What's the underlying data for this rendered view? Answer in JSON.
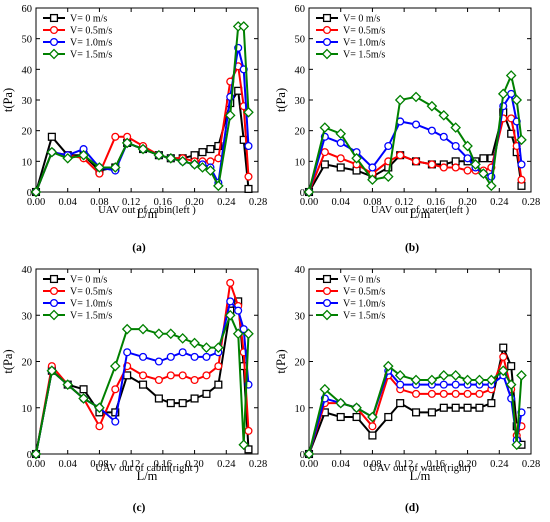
{
  "chart_data": [
    {
      "type": "line",
      "panel_label": "(a)",
      "caption": "UAV out of cabin(left )",
      "xlabel": "L/m",
      "ylabel": "t(Pa)",
      "xlim": [
        0,
        0.28
      ],
      "ylim": [
        0,
        60
      ],
      "xticks": [
        "0.00",
        "0.04",
        "0.08",
        "0.12",
        "0.16",
        "0.20",
        "0.24",
        "0.28"
      ],
      "yticks": [
        "0",
        "10",
        "20",
        "30",
        "40",
        "50",
        "60"
      ],
      "legend_position": "top-left",
      "series": [
        {
          "name": "V= 0 m/s",
          "color": "#000000",
          "marker": "square",
          "x": [
            0.0,
            0.02,
            0.04,
            0.06,
            0.08,
            0.1,
            0.115,
            0.135,
            0.155,
            0.17,
            0.185,
            0.2,
            0.21,
            0.22,
            0.23,
            0.245,
            0.255,
            0.262,
            0.268
          ],
          "y": [
            0,
            18,
            12,
            12,
            7,
            8,
            16,
            14,
            12,
            11,
            11,
            12,
            13,
            14,
            15,
            29,
            33,
            17,
            1
          ]
        },
        {
          "name": "V= 0.5m/s",
          "color": "#ff0000",
          "marker": "circle",
          "x": [
            0.0,
            0.02,
            0.04,
            0.06,
            0.08,
            0.1,
            0.115,
            0.135,
            0.155,
            0.17,
            0.185,
            0.2,
            0.21,
            0.22,
            0.23,
            0.245,
            0.255,
            0.262,
            0.268
          ],
          "y": [
            0,
            13,
            12,
            11,
            6,
            18,
            18,
            15,
            12,
            11,
            11,
            10,
            10,
            10,
            11,
            36,
            41,
            28,
            5
          ]
        },
        {
          "name": "V= 1.0m/s",
          "color": "#0000ff",
          "marker": "circle",
          "x": [
            0.0,
            0.02,
            0.04,
            0.06,
            0.08,
            0.1,
            0.115,
            0.135,
            0.155,
            0.17,
            0.185,
            0.2,
            0.21,
            0.22,
            0.23,
            0.245,
            0.255,
            0.262,
            0.268
          ],
          "y": [
            0,
            13,
            12,
            14,
            8,
            7,
            16,
            14,
            12,
            11,
            10,
            9,
            9,
            8,
            3,
            31,
            47,
            40,
            15
          ]
        },
        {
          "name": "V= 1.5m/s",
          "color": "#008000",
          "marker": "diamond",
          "x": [
            0.0,
            0.02,
            0.04,
            0.06,
            0.08,
            0.1,
            0.115,
            0.135,
            0.155,
            0.17,
            0.185,
            0.2,
            0.21,
            0.22,
            0.23,
            0.245,
            0.255,
            0.262,
            0.268
          ],
          "y": [
            0,
            13,
            11,
            12,
            8,
            8,
            16,
            14,
            12,
            11,
            10,
            9,
            8,
            7,
            2,
            25,
            54,
            54,
            26
          ]
        }
      ]
    },
    {
      "type": "line",
      "panel_label": "(b)",
      "caption": "UAV out of water(left )",
      "xlabel": "L/m",
      "ylabel": "t(Pa)",
      "xlim": [
        0,
        0.28
      ],
      "ylim": [
        0,
        60
      ],
      "xticks": [
        "0.00",
        "0.04",
        "0.08",
        "0.12",
        "0.16",
        "0.20",
        "0.24",
        "0.28"
      ],
      "yticks": [
        "0",
        "10",
        "20",
        "30",
        "40",
        "50",
        "60"
      ],
      "legend_position": "top-left",
      "series": [
        {
          "name": "V= 0 m/s",
          "color": "#000000",
          "marker": "square",
          "x": [
            0.0,
            0.02,
            0.04,
            0.06,
            0.08,
            0.1,
            0.115,
            0.135,
            0.155,
            0.17,
            0.185,
            0.2,
            0.21,
            0.22,
            0.23,
            0.245,
            0.255,
            0.262,
            0.268
          ],
          "y": [
            0,
            9,
            8,
            7,
            5,
            8,
            12,
            10,
            9,
            9,
            10,
            10,
            10,
            11,
            11,
            26,
            19,
            13,
            2
          ]
        },
        {
          "name": "V= 0.5m/s",
          "color": "#ff0000",
          "marker": "circle",
          "x": [
            0.0,
            0.02,
            0.04,
            0.06,
            0.08,
            0.1,
            0.115,
            0.135,
            0.155,
            0.17,
            0.185,
            0.2,
            0.21,
            0.22,
            0.23,
            0.245,
            0.255,
            0.262,
            0.268
          ],
          "y": [
            0,
            13,
            11,
            9,
            6,
            10,
            12,
            10,
            9,
            8,
            8,
            7,
            7,
            7,
            8,
            24,
            24,
            15,
            4
          ]
        },
        {
          "name": "V= 1.0m/s",
          "color": "#0000ff",
          "marker": "circle",
          "x": [
            0.0,
            0.02,
            0.04,
            0.06,
            0.08,
            0.1,
            0.115,
            0.135,
            0.155,
            0.17,
            0.185,
            0.2,
            0.21,
            0.22,
            0.23,
            0.245,
            0.255,
            0.262,
            0.268
          ],
          "y": [
            0,
            18,
            16,
            13,
            8,
            15,
            23,
            22,
            20,
            18,
            15,
            11,
            8,
            6,
            5,
            28,
            32,
            23,
            9
          ]
        },
        {
          "name": "V= 1.5m/s",
          "color": "#008000",
          "marker": "diamond",
          "x": [
            0.0,
            0.02,
            0.04,
            0.06,
            0.08,
            0.1,
            0.115,
            0.135,
            0.155,
            0.17,
            0.185,
            0.2,
            0.21,
            0.22,
            0.23,
            0.245,
            0.255,
            0.262,
            0.268
          ],
          "y": [
            0,
            21,
            19,
            11,
            4,
            5,
            30,
            31,
            28,
            25,
            21,
            15,
            9,
            6,
            2,
            32,
            38,
            30,
            17
          ]
        }
      ]
    },
    {
      "type": "line",
      "panel_label": "(c)",
      "caption": "UAV out of cabin(right )",
      "xlabel": "L/m",
      "ylabel": "t(Pa)",
      "xlim": [
        0,
        0.28
      ],
      "ylim": [
        0,
        40
      ],
      "xticks": [
        "0.00",
        "0.04",
        "0.08",
        "0.12",
        "0.16",
        "0.20",
        "0.24",
        "0.28"
      ],
      "yticks": [
        "0",
        "10",
        "20",
        "30",
        "40"
      ],
      "legend_position": "top-left",
      "series": [
        {
          "name": "V= 0 m/s",
          "color": "#000000",
          "marker": "square",
          "x": [
            0.0,
            0.02,
            0.04,
            0.06,
            0.08,
            0.1,
            0.115,
            0.135,
            0.155,
            0.17,
            0.185,
            0.2,
            0.215,
            0.23,
            0.245,
            0.255,
            0.262,
            0.268
          ],
          "y": [
            0,
            18,
            15,
            14,
            9,
            9,
            17,
            15,
            12,
            11,
            11,
            12,
            13,
            15,
            31,
            33,
            19,
            1
          ]
        },
        {
          "name": "V= 0.5m/s",
          "color": "#ff0000",
          "marker": "circle",
          "x": [
            0.0,
            0.02,
            0.04,
            0.06,
            0.08,
            0.1,
            0.115,
            0.135,
            0.155,
            0.17,
            0.185,
            0.2,
            0.215,
            0.23,
            0.245,
            0.255,
            0.262,
            0.268
          ],
          "y": [
            0,
            19,
            15,
            12,
            6,
            14,
            19,
            17,
            16,
            17,
            17,
            16,
            17,
            19,
            37,
            32,
            22,
            5
          ]
        },
        {
          "name": "V= 1.0m/s",
          "color": "#0000ff",
          "marker": "circle",
          "x": [
            0.0,
            0.02,
            0.04,
            0.06,
            0.08,
            0.1,
            0.115,
            0.135,
            0.155,
            0.17,
            0.185,
            0.2,
            0.215,
            0.23,
            0.245,
            0.255,
            0.262,
            0.268
          ],
          "y": [
            0,
            18,
            15,
            12,
            10,
            7,
            22,
            21,
            20,
            21,
            22,
            21,
            21,
            22,
            33,
            31,
            27,
            15
          ]
        },
        {
          "name": "V= 1.5m/s",
          "color": "#008000",
          "marker": "diamond",
          "x": [
            0.0,
            0.02,
            0.04,
            0.06,
            0.08,
            0.1,
            0.115,
            0.135,
            0.155,
            0.17,
            0.185,
            0.2,
            0.215,
            0.23,
            0.245,
            0.255,
            0.262,
            0.268
          ],
          "y": [
            0,
            18,
            15,
            12,
            10,
            19,
            27,
            27,
            26,
            26,
            25,
            24,
            23,
            23,
            30,
            26,
            2,
            26
          ]
        }
      ]
    },
    {
      "type": "line",
      "panel_label": "(d)",
      "caption": "UAV out of water(right)",
      "xlabel": "L/m",
      "ylabel": "t(Pa)",
      "xlim": [
        0,
        0.28
      ],
      "ylim": [
        0,
        40
      ],
      "xticks": [
        "0.00",
        "0.04",
        "0.08",
        "0.12",
        "0.16",
        "0.20",
        "0.24",
        "0.28"
      ],
      "yticks": [
        "0",
        "10",
        "20",
        "30",
        "40"
      ],
      "legend_position": "top-left",
      "series": [
        {
          "name": "V= 0 m/s",
          "color": "#000000",
          "marker": "square",
          "x": [
            0.0,
            0.02,
            0.04,
            0.06,
            0.08,
            0.1,
            0.115,
            0.135,
            0.155,
            0.17,
            0.185,
            0.2,
            0.215,
            0.23,
            0.245,
            0.255,
            0.262,
            0.268
          ],
          "y": [
            0,
            9,
            8,
            8,
            4,
            8,
            11,
            9,
            9,
            10,
            10,
            10,
            10,
            11,
            23,
            19,
            6,
            2
          ]
        },
        {
          "name": "V= 0.5m/s",
          "color": "#ff0000",
          "marker": "circle",
          "x": [
            0.0,
            0.02,
            0.04,
            0.06,
            0.08,
            0.1,
            0.115,
            0.135,
            0.155,
            0.17,
            0.185,
            0.2,
            0.215,
            0.23,
            0.245,
            0.255,
            0.262,
            0.268
          ],
          "y": [
            0,
            11,
            11,
            10,
            6,
            17,
            14,
            13,
            13,
            13,
            13,
            13,
            13,
            14,
            21,
            14,
            4,
            6
          ]
        },
        {
          "name": "V= 1.0m/s",
          "color": "#0000ff",
          "marker": "circle",
          "x": [
            0.0,
            0.02,
            0.04,
            0.06,
            0.08,
            0.1,
            0.115,
            0.135,
            0.155,
            0.17,
            0.185,
            0.2,
            0.215,
            0.23,
            0.245,
            0.255,
            0.262,
            0.268
          ],
          "y": [
            0,
            12,
            11,
            10,
            8,
            18,
            15,
            15,
            15,
            15,
            15,
            15,
            15,
            15,
            17,
            12,
            3,
            9
          ]
        },
        {
          "name": "V= 1.5m/s",
          "color": "#008000",
          "marker": "diamond",
          "x": [
            0.0,
            0.02,
            0.04,
            0.06,
            0.08,
            0.1,
            0.115,
            0.135,
            0.155,
            0.17,
            0.185,
            0.2,
            0.215,
            0.23,
            0.245,
            0.255,
            0.262,
            0.268
          ],
          "y": [
            0,
            14,
            11,
            10,
            8,
            19,
            17,
            16,
            16,
            17,
            17,
            16,
            16,
            16,
            18,
            15,
            2,
            17
          ]
        }
      ]
    }
  ]
}
